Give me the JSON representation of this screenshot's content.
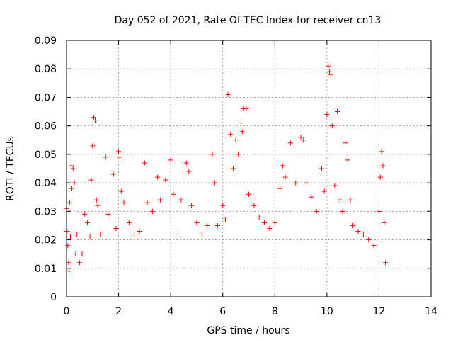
{
  "chart_data": {
    "type": "scatter",
    "title": "Day 052 of 2021, Rate Of TEC Index for receiver cn13",
    "xlabel": "GPS time / hours",
    "ylabel": "ROTI / TECUs",
    "xlim": [
      0,
      14
    ],
    "ylim": [
      0,
      0.09
    ],
    "x_ticks": [
      "0",
      "2",
      "4",
      "6",
      "8",
      "10",
      "12",
      "14"
    ],
    "y_ticks": [
      "0",
      "0.01",
      "0.02",
      "0.03",
      "0.04",
      "0.05",
      "0.06",
      "0.07",
      "0.08",
      "0.09"
    ],
    "grid": true,
    "marker": "+",
    "series": [
      {
        "color": "#ff0000",
        "points": [
          [
            0.0,
            0.031
          ],
          [
            0.02,
            0.023
          ],
          [
            0.05,
            0.018
          ],
          [
            0.08,
            0.012
          ],
          [
            0.1,
            0.009
          ],
          [
            0.12,
            0.033
          ],
          [
            0.15,
            0.021
          ],
          [
            0.18,
            0.046
          ],
          [
            0.2,
            0.038
          ],
          [
            0.25,
            0.045
          ],
          [
            0.3,
            0.04
          ],
          [
            0.35,
            0.015
          ],
          [
            0.4,
            0.022
          ],
          [
            0.5,
            0.012
          ],
          [
            0.6,
            0.015
          ],
          [
            0.7,
            0.029
          ],
          [
            0.8,
            0.026
          ],
          [
            0.9,
            0.021
          ],
          [
            0.95,
            0.041
          ],
          [
            1.0,
            0.053
          ],
          [
            1.05,
            0.063
          ],
          [
            1.1,
            0.062
          ],
          [
            1.15,
            0.034
          ],
          [
            1.2,
            0.032
          ],
          [
            1.3,
            0.022
          ],
          [
            1.5,
            0.049
          ],
          [
            1.6,
            0.029
          ],
          [
            1.8,
            0.043
          ],
          [
            1.9,
            0.024
          ],
          [
            2.0,
            0.051
          ],
          [
            2.05,
            0.049
          ],
          [
            2.1,
            0.037
          ],
          [
            2.2,
            0.033
          ],
          [
            2.4,
            0.026
          ],
          [
            2.6,
            0.022
          ],
          [
            2.8,
            0.023
          ],
          [
            3.0,
            0.047
          ],
          [
            3.1,
            0.033
          ],
          [
            3.3,
            0.03
          ],
          [
            3.5,
            0.042
          ],
          [
            3.6,
            0.034
          ],
          [
            3.8,
            0.041
          ],
          [
            4.0,
            0.048
          ],
          [
            4.1,
            0.036
          ],
          [
            4.2,
            0.022
          ],
          [
            4.4,
            0.034
          ],
          [
            4.6,
            0.047
          ],
          [
            4.7,
            0.044
          ],
          [
            4.8,
            0.032
          ],
          [
            5.0,
            0.026
          ],
          [
            5.2,
            0.022
          ],
          [
            5.4,
            0.025
          ],
          [
            5.6,
            0.05
          ],
          [
            5.7,
            0.04
          ],
          [
            5.8,
            0.025
          ],
          [
            6.0,
            0.032
          ],
          [
            6.1,
            0.027
          ],
          [
            6.2,
            0.071
          ],
          [
            6.3,
            0.057
          ],
          [
            6.4,
            0.045
          ],
          [
            6.5,
            0.055
          ],
          [
            6.6,
            0.05
          ],
          [
            6.7,
            0.061
          ],
          [
            6.75,
            0.058
          ],
          [
            6.8,
            0.066
          ],
          [
            6.9,
            0.066
          ],
          [
            7.0,
            0.036
          ],
          [
            7.2,
            0.032
          ],
          [
            7.4,
            0.028
          ],
          [
            7.6,
            0.026
          ],
          [
            7.8,
            0.024
          ],
          [
            8.0,
            0.026
          ],
          [
            8.2,
            0.038
          ],
          [
            8.3,
            0.046
          ],
          [
            8.4,
            0.042
          ],
          [
            8.6,
            0.054
          ],
          [
            8.8,
            0.04
          ],
          [
            9.0,
            0.056
          ],
          [
            9.1,
            0.055
          ],
          [
            9.2,
            0.04
          ],
          [
            9.4,
            0.035
          ],
          [
            9.6,
            0.03
          ],
          [
            9.8,
            0.045
          ],
          [
            9.9,
            0.037
          ],
          [
            10.0,
            0.064
          ],
          [
            10.05,
            0.081
          ],
          [
            10.1,
            0.079
          ],
          [
            10.15,
            0.078
          ],
          [
            10.2,
            0.06
          ],
          [
            10.3,
            0.039
          ],
          [
            10.4,
            0.065
          ],
          [
            10.5,
            0.034
          ],
          [
            10.6,
            0.03
          ],
          [
            10.7,
            0.054
          ],
          [
            10.8,
            0.048
          ],
          [
            10.9,
            0.034
          ],
          [
            11.0,
            0.025
          ],
          [
            11.2,
            0.023
          ],
          [
            11.4,
            0.022
          ],
          [
            11.6,
            0.02
          ],
          [
            11.8,
            0.018
          ],
          [
            12.0,
            0.03
          ],
          [
            12.05,
            0.042
          ],
          [
            12.1,
            0.051
          ],
          [
            12.15,
            0.046
          ],
          [
            12.2,
            0.026
          ],
          [
            12.25,
            0.012
          ]
        ]
      }
    ]
  }
}
